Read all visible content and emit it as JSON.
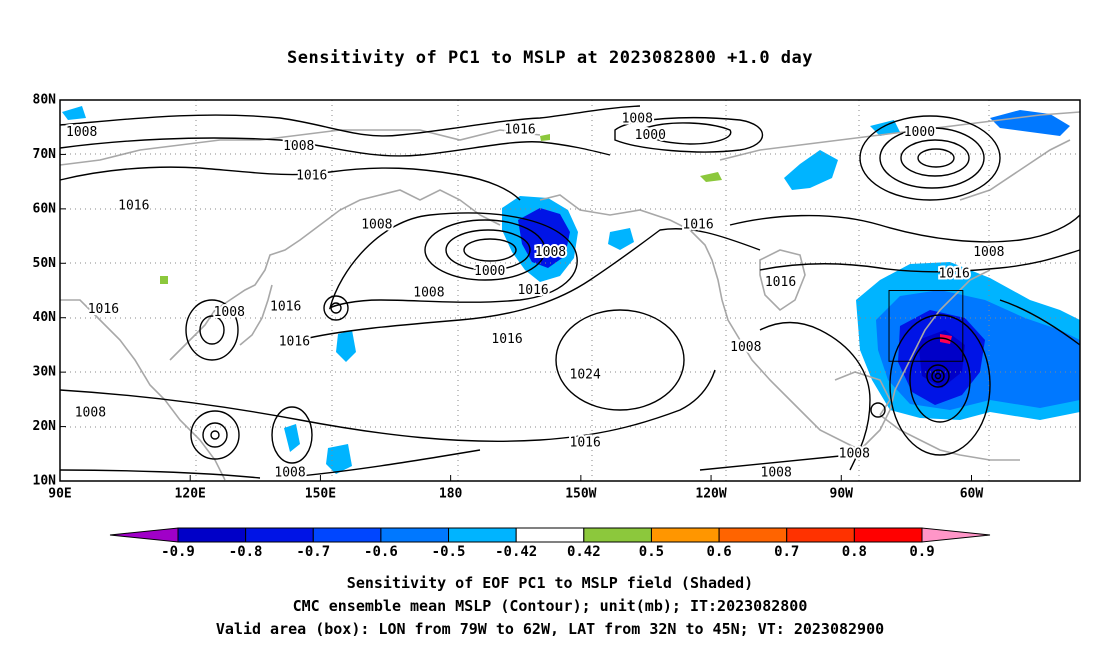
{
  "title": "Sensitivity of PC1 to MSLP at 2023082800 +1.0 day",
  "map": {
    "lat_labels": [
      "80N",
      "70N",
      "60N",
      "50N",
      "40N",
      "30N",
      "20N",
      "10N"
    ],
    "lon_labels": [
      "90E",
      "120E",
      "150E",
      "180",
      "150W",
      "120W",
      "90W",
      "60W"
    ],
    "lon_range": [
      "90E",
      "35W"
    ],
    "lat_range": [
      "10N",
      "80N"
    ],
    "valid_box": {
      "lon": [
        "79W",
        "62W"
      ],
      "lat": [
        "32N",
        "45N"
      ]
    },
    "contour_labels": [
      {
        "text": "1008",
        "lon": 95,
        "lat": 74
      },
      {
        "text": "1008",
        "lon": 145,
        "lat": 71.5
      },
      {
        "text": "1016",
        "lon": 148,
        "lat": 66
      },
      {
        "text": "1016",
        "lon": 107,
        "lat": 60.5
      },
      {
        "text": "1016",
        "lon": 196,
        "lat": 74.5
      },
      {
        "text": "1008",
        "lon": 223,
        "lat": 76.5
      },
      {
        "text": "1000",
        "lon": 226,
        "lat": 73.5
      },
      {
        "text": "1000",
        "lon": 288,
        "lat": 74
      },
      {
        "text": "1008",
        "lon": 163,
        "lat": 57
      },
      {
        "text": "1008",
        "lon": 203,
        "lat": 52
      },
      {
        "text": "1000",
        "lon": 189,
        "lat": 48.5
      },
      {
        "text": "1008",
        "lon": 175,
        "lat": 44.5
      },
      {
        "text": "1016",
        "lon": 199,
        "lat": 45
      },
      {
        "text": "1016",
        "lon": 100,
        "lat": 41.5
      },
      {
        "text": "1008",
        "lon": 129,
        "lat": 41
      },
      {
        "text": "1016",
        "lon": 142,
        "lat": 42
      },
      {
        "text": "1016",
        "lon": 144,
        "lat": 35.5
      },
      {
        "text": "1016",
        "lon": 237,
        "lat": 57
      },
      {
        "text": "1016",
        "lon": 256,
        "lat": 46.5
      },
      {
        "text": "1016",
        "lon": 296,
        "lat": 48
      },
      {
        "text": "1008",
        "lon": 304,
        "lat": 52
      },
      {
        "text": "1016",
        "lon": 193,
        "lat": 36
      },
      {
        "text": "1024",
        "lon": 211,
        "lat": 29.5
      },
      {
        "text": "1008",
        "lon": 248,
        "lat": 34.5
      },
      {
        "text": "1016",
        "lon": 211,
        "lat": 17
      },
      {
        "text": "1008",
        "lon": 97,
        "lat": 22.5
      },
      {
        "text": "1008",
        "lon": 143,
        "lat": 11.5
      },
      {
        "text": "1008",
        "lon": 255,
        "lat": 11.5
      },
      {
        "text": "1008",
        "lon": 273,
        "lat": 15
      }
    ]
  },
  "colorbar": {
    "tick_labels": [
      "-0.9",
      "-0.8",
      "-0.7",
      "-0.6",
      "-0.5",
      "-0.42",
      "0.42",
      "0.5",
      "0.6",
      "0.7",
      "0.8",
      "0.9"
    ],
    "colors": [
      "#a000c8",
      "#0000c8",
      "#0014e6",
      "#0046ff",
      "#0078ff",
      "#00b4ff",
      "#ffffff",
      "#8cc83c",
      "#ff9600",
      "#ff6400",
      "#ff3200",
      "#ff0000",
      "#ff96c8"
    ]
  },
  "shading": {
    "neg_light": "#00b4ff",
    "neg_medium": "#0078ff",
    "neg_strong": "#0014e6",
    "neg_max": "#0000c8",
    "pos_light": "#8cc83c",
    "pos_strong": "#ff0050"
  },
  "captions": [
    "Sensitivity of EOF PC1 to MSLP field (Shaded)",
    "CMC ensemble mean MSLP (Contour); unit(mb); IT:2023082800",
    "Valid area (box): LON from 79W to 62W, LAT from 32N to 45N; VT: 2023082900"
  ]
}
